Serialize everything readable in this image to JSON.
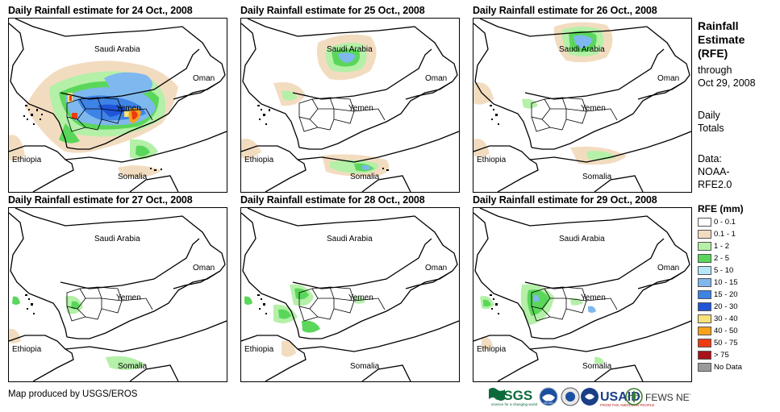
{
  "panels": [
    {
      "title": "Daily Rainfall estimate for 24 Oct., 2008"
    },
    {
      "title": "Daily Rainfall estimate for 25 Oct., 2008"
    },
    {
      "title": "Daily Rainfall estimate for 26 Oct., 2008"
    },
    {
      "title": "Daily Rainfall estimate for 27 Oct., 2008"
    },
    {
      "title": "Daily Rainfall estimate for 28 Oct., 2008"
    },
    {
      "title": "Daily Rainfall estimate for 29 Oct., 2008"
    }
  ],
  "map_labels": {
    "saudi": "Saudi Arabia",
    "oman": "Oman",
    "yemen": "Yemen",
    "ethiopia": "Ethiopia",
    "somalia": "Somalia"
  },
  "side": {
    "title_lines": [
      "Rainfall",
      "Estimate",
      "(RFE)"
    ],
    "through": "through",
    "date": "Oct 29, 2008",
    "totals_lines": [
      "Daily",
      "Totals"
    ],
    "data_lines": [
      "Data:",
      "NOAA-",
      "RFE2.0"
    ]
  },
  "legend": {
    "title": "RFE (mm)",
    "items": [
      {
        "label": "0 - 0.1",
        "color": "#ffffff"
      },
      {
        "label": "0.1 - 1",
        "color": "#f2dcc0"
      },
      {
        "label": "1 - 2",
        "color": "#b4f0a8"
      },
      {
        "label": "2 - 5",
        "color": "#5ad75a"
      },
      {
        "label": "5 - 10",
        "color": "#b6e8f8"
      },
      {
        "label": "10 - 15",
        "color": "#7fb8ee"
      },
      {
        "label": "15 - 20",
        "color": "#3e83e6"
      },
      {
        "label": "20 - 30",
        "color": "#1f55d8"
      },
      {
        "label": "30 - 40",
        "color": "#f8e27a"
      },
      {
        "label": "40 - 50",
        "color": "#f7a21a"
      },
      {
        "label": "50 - 75",
        "color": "#ee3a12"
      },
      {
        "label": "> 75",
        "color": "#a8141a"
      },
      {
        "label": "No Data",
        "color": "#9a9a9a"
      }
    ]
  },
  "footer": "Map produced by USGS/EROS",
  "logos": {
    "usgs": "USGS",
    "usgs_tag": "science for a changing world",
    "noaa": "NOAA",
    "usaid": "USAID",
    "usaid_tag": "FROM THE AMERICAN PEOPLE",
    "fews": "FEWS NET"
  }
}
